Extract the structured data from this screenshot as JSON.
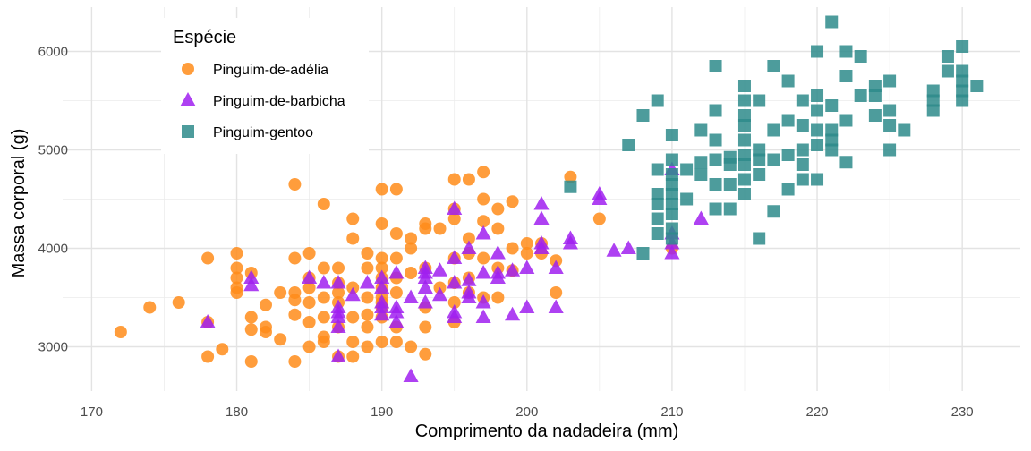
{
  "chart_data": {
    "type": "scatter",
    "xlabel": "Comprimento da nadadeira (mm)",
    "ylabel": "Massa corporal (g)",
    "xlim": [
      168,
      234
    ],
    "ylim": [
      2550,
      6450
    ],
    "x_ticks": [
      170,
      180,
      190,
      200,
      210,
      220,
      230
    ],
    "y_ticks": [
      3000,
      4000,
      5000,
      6000
    ],
    "x_tick_labels": [
      "170",
      "180",
      "190",
      "200",
      "210",
      "220",
      "230"
    ],
    "y_tick_labels": [
      "3000",
      "4000",
      "5000",
      "6000"
    ],
    "grid": true,
    "legend": {
      "title": "Espécie",
      "placement": "top-left"
    },
    "series": [
      {
        "name": "Pinguim-de-adélia",
        "marker": "circle",
        "color": "#FF8C1A",
        "points": [
          [
            172,
            3150
          ],
          [
            174,
            3400
          ],
          [
            176,
            3450
          ],
          [
            178,
            3900
          ],
          [
            178,
            2900
          ],
          [
            178,
            3250
          ],
          [
            179,
            2975
          ],
          [
            180,
            3950
          ],
          [
            180,
            3800
          ],
          [
            180,
            3700
          ],
          [
            180,
            3600
          ],
          [
            180,
            3550
          ],
          [
            181,
            3750
          ],
          [
            181,
            3300
          ],
          [
            181,
            3175
          ],
          [
            181,
            2850
          ],
          [
            182,
            3425
          ],
          [
            182,
            3200
          ],
          [
            182,
            3150
          ],
          [
            183,
            3550
          ],
          [
            183,
            3075
          ],
          [
            184,
            4650
          ],
          [
            184,
            3900
          ],
          [
            184,
            3550
          ],
          [
            184,
            3325
          ],
          [
            184,
            3475
          ],
          [
            184,
            2850
          ],
          [
            185,
            3950
          ],
          [
            185,
            3700
          ],
          [
            185,
            3600
          ],
          [
            185,
            3450
          ],
          [
            185,
            3250
          ],
          [
            185,
            3000
          ],
          [
            186,
            4450
          ],
          [
            186,
            3800
          ],
          [
            186,
            3500
          ],
          [
            186,
            3300
          ],
          [
            186,
            3100
          ],
          [
            186,
            3050
          ],
          [
            187,
            3800
          ],
          [
            187,
            3650
          ],
          [
            187,
            3550
          ],
          [
            187,
            3450
          ],
          [
            187,
            3200
          ],
          [
            187,
            2900
          ],
          [
            188,
            4300
          ],
          [
            188,
            4100
          ],
          [
            188,
            3600
          ],
          [
            188,
            3300
          ],
          [
            188,
            3050
          ],
          [
            188,
            2900
          ],
          [
            189,
            3800
          ],
          [
            189,
            3500
          ],
          [
            189,
            3325
          ],
          [
            189,
            3200
          ],
          [
            189,
            3000
          ],
          [
            189,
            3950
          ],
          [
            190,
            4600
          ],
          [
            190,
            4250
          ],
          [
            190,
            3900
          ],
          [
            190,
            3800
          ],
          [
            190,
            3700
          ],
          [
            190,
            3600
          ],
          [
            190,
            3500
          ],
          [
            190,
            3450
          ],
          [
            190,
            3400
          ],
          [
            190,
            3300
          ],
          [
            190,
            3050
          ],
          [
            191,
            4600
          ],
          [
            191,
            4150
          ],
          [
            191,
            3900
          ],
          [
            191,
            3700
          ],
          [
            191,
            3550
          ],
          [
            191,
            3200
          ],
          [
            191,
            3050
          ],
          [
            192,
            4100
          ],
          [
            192,
            4000
          ],
          [
            192,
            3750
          ],
          [
            192,
            3000
          ],
          [
            193,
            4250
          ],
          [
            193,
            4200
          ],
          [
            193,
            3800
          ],
          [
            193,
            3400
          ],
          [
            193,
            3200
          ],
          [
            193,
            2925
          ],
          [
            194,
            4200
          ],
          [
            194,
            3600
          ],
          [
            195,
            4700
          ],
          [
            195,
            4400
          ],
          [
            195,
            4300
          ],
          [
            195,
            3900
          ],
          [
            195,
            3650
          ],
          [
            195,
            3450
          ],
          [
            195,
            3250
          ],
          [
            196,
            4700
          ],
          [
            196,
            4100
          ],
          [
            196,
            3700
          ],
          [
            196,
            3550
          ],
          [
            196,
            3950
          ],
          [
            197,
            4775
          ],
          [
            197,
            4500
          ],
          [
            197,
            4275
          ],
          [
            197,
            3900
          ],
          [
            197,
            3500
          ],
          [
            198,
            4400
          ],
          [
            198,
            4200
          ],
          [
            198,
            3800
          ],
          [
            198,
            3500
          ],
          [
            199,
            4475
          ],
          [
            199,
            4000
          ],
          [
            199,
            3775
          ],
          [
            200,
            4050
          ],
          [
            200,
            3950
          ],
          [
            201,
            4050
          ],
          [
            201,
            3950
          ],
          [
            202,
            3875
          ],
          [
            202,
            3550
          ],
          [
            203,
            4725
          ],
          [
            205,
            4300
          ],
          [
            210,
            4000
          ]
        ]
      },
      {
        "name": "Pinguim-de-barbicha",
        "marker": "triangle",
        "color": "#A020F0",
        "points": [
          [
            178,
            3250
          ],
          [
            181,
            3700
          ],
          [
            181,
            3625
          ],
          [
            185,
            3700
          ],
          [
            186,
            3650
          ],
          [
            187,
            3400
          ],
          [
            187,
            3350
          ],
          [
            187,
            3300
          ],
          [
            187,
            3200
          ],
          [
            187,
            2900
          ],
          [
            187,
            3650
          ],
          [
            188,
            3525
          ],
          [
            189,
            3650
          ],
          [
            190,
            3700
          ],
          [
            190,
            3600
          ],
          [
            190,
            3450
          ],
          [
            190,
            3400
          ],
          [
            190,
            3325
          ],
          [
            191,
            3750
          ],
          [
            191,
            3400
          ],
          [
            191,
            3350
          ],
          [
            191,
            3250
          ],
          [
            192,
            3500
          ],
          [
            192,
            2700
          ],
          [
            193,
            3800
          ],
          [
            193,
            3750
          ],
          [
            193,
            3700
          ],
          [
            193,
            3600
          ],
          [
            193,
            3450
          ],
          [
            194,
            3775
          ],
          [
            194,
            3525
          ],
          [
            195,
            4400
          ],
          [
            195,
            3900
          ],
          [
            195,
            3650
          ],
          [
            195,
            3300
          ],
          [
            195,
            3350
          ],
          [
            196,
            4000
          ],
          [
            196,
            3675
          ],
          [
            196,
            3550
          ],
          [
            196,
            3500
          ],
          [
            197,
            4150
          ],
          [
            197,
            3750
          ],
          [
            197,
            3450
          ],
          [
            197,
            3300
          ],
          [
            198,
            3950
          ],
          [
            198,
            3750
          ],
          [
            198,
            3700
          ],
          [
            199,
            3775
          ],
          [
            199,
            3325
          ],
          [
            200,
            3800
          ],
          [
            200,
            3400
          ],
          [
            201,
            4450
          ],
          [
            201,
            4300
          ],
          [
            201,
            4050
          ],
          [
            201,
            4000
          ],
          [
            202,
            3800
          ],
          [
            202,
            3400
          ],
          [
            203,
            4100
          ],
          [
            203,
            4050
          ],
          [
            205,
            4550
          ],
          [
            205,
            4500
          ],
          [
            206,
            3975
          ],
          [
            207,
            4000
          ],
          [
            210,
            4800
          ],
          [
            210,
            4150
          ],
          [
            210,
            4050
          ],
          [
            210,
            3950
          ],
          [
            212,
            4300
          ]
        ]
      },
      {
        "name": "Pinguim-gentoo",
        "marker": "square",
        "color": "#2E8B8B",
        "points": [
          [
            203,
            4625
          ],
          [
            207,
            5050
          ],
          [
            208,
            5350
          ],
          [
            208,
            3950
          ],
          [
            209,
            5500
          ],
          [
            209,
            4800
          ],
          [
            209,
            4550
          ],
          [
            209,
            4450
          ],
          [
            209,
            4300
          ],
          [
            209,
            4150
          ],
          [
            210,
            5150
          ],
          [
            210,
            4900
          ],
          [
            210,
            4750
          ],
          [
            210,
            4650
          ],
          [
            210,
            4550
          ],
          [
            210,
            4450
          ],
          [
            210,
            4350
          ],
          [
            210,
            4200
          ],
          [
            210,
            4100
          ],
          [
            211,
            4800
          ],
          [
            211,
            4500
          ],
          [
            212,
            5200
          ],
          [
            212,
            4875
          ],
          [
            212,
            4750
          ],
          [
            213,
            5850
          ],
          [
            213,
            5400
          ],
          [
            213,
            5100
          ],
          [
            213,
            4900
          ],
          [
            213,
            4650
          ],
          [
            213,
            4400
          ],
          [
            214,
            4925
          ],
          [
            214,
            4650
          ],
          [
            214,
            4400
          ],
          [
            214,
            4850
          ],
          [
            215,
            5650
          ],
          [
            215,
            5500
          ],
          [
            215,
            5350
          ],
          [
            215,
            5250
          ],
          [
            215,
            5100
          ],
          [
            215,
            4950
          ],
          [
            215,
            4850
          ],
          [
            215,
            4700
          ],
          [
            215,
            4550
          ],
          [
            216,
            5500
          ],
          [
            216,
            5000
          ],
          [
            216,
            4900
          ],
          [
            216,
            4750
          ],
          [
            216,
            4100
          ],
          [
            217,
            5850
          ],
          [
            217,
            5200
          ],
          [
            217,
            4900
          ],
          [
            217,
            4375
          ],
          [
            218,
            5700
          ],
          [
            218,
            5300
          ],
          [
            218,
            4950
          ],
          [
            218,
            4600
          ],
          [
            219,
            5500
          ],
          [
            219,
            5250
          ],
          [
            219,
            5000
          ],
          [
            219,
            4850
          ],
          [
            219,
            4700
          ],
          [
            220,
            6000
          ],
          [
            220,
            5550
          ],
          [
            220,
            5400
          ],
          [
            220,
            5200
          ],
          [
            220,
            5050
          ],
          [
            220,
            4700
          ],
          [
            221,
            6300
          ],
          [
            221,
            5450
          ],
          [
            221,
            5200
          ],
          [
            221,
            5100
          ],
          [
            221,
            5000
          ],
          [
            222,
            6000
          ],
          [
            222,
            5750
          ],
          [
            222,
            5300
          ],
          [
            222,
            4875
          ],
          [
            223,
            5950
          ],
          [
            223,
            5550
          ],
          [
            224,
            5650
          ],
          [
            224,
            5550
          ],
          [
            224,
            5350
          ],
          [
            225,
            5700
          ],
          [
            225,
            5400
          ],
          [
            225,
            5250
          ],
          [
            225,
            5000
          ],
          [
            226,
            5200
          ],
          [
            228,
            5600
          ],
          [
            228,
            5500
          ],
          [
            228,
            5400
          ],
          [
            229,
            5950
          ],
          [
            229,
            5800
          ],
          [
            230,
            6050
          ],
          [
            230,
            5800
          ],
          [
            230,
            5700
          ],
          [
            230,
            5600
          ],
          [
            230,
            5500
          ],
          [
            231,
            5650
          ]
        ]
      }
    ]
  }
}
